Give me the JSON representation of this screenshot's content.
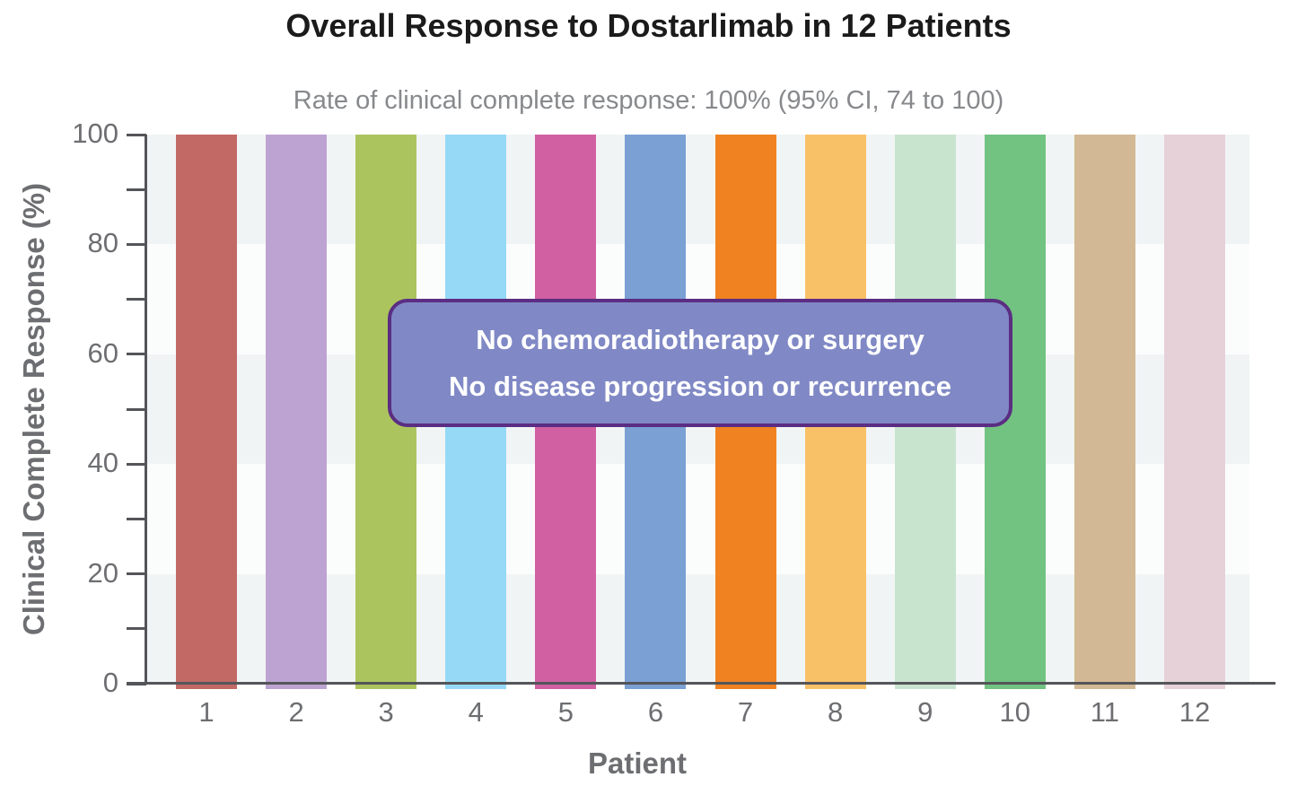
{
  "page": {
    "title": "Overall Response to Dostarlimab in 12 Patients",
    "subtitle": "Rate of clinical complete response: 100% (95% CI, 74 to 100)"
  },
  "annotation": {
    "line1": "No chemoradiotherapy or surgery",
    "line2": "No disease progression or recurrence",
    "fill_color": "#8089c5",
    "border_color": "#5b2d83",
    "text_color": "#ffffff"
  },
  "chart_data": {
    "type": "bar",
    "title": "Overall Response to Dostarlimab in 12 Patients",
    "subtitle": "Rate of clinical complete response: 100% (95% CI, 74 to 100)",
    "xlabel": "Patient",
    "ylabel": "Clinical Complete Response (%)",
    "categories": [
      "1",
      "2",
      "3",
      "4",
      "5",
      "6",
      "7",
      "8",
      "9",
      "10",
      "11",
      "12"
    ],
    "values": [
      100,
      100,
      100,
      100,
      100,
      100,
      100,
      100,
      100,
      100,
      100,
      100
    ],
    "ylim": [
      0,
      100
    ],
    "ytick_labeled": [
      0,
      20,
      40,
      60,
      80,
      100
    ],
    "ytick_minor": [
      10,
      30,
      50,
      70,
      90
    ],
    "legend_position": "none",
    "grid": "alternating horizontal shaded bands every 20%",
    "bar_colors": [
      "#c26966",
      "#bda3d2",
      "#abc45e",
      "#96d9f7",
      "#d160a2",
      "#7aa0d4",
      "#f08221",
      "#f9c167",
      "#c8e4cf",
      "#72c282",
      "#d2b894",
      "#e6d1d8"
    ],
    "band_colors": [
      "#f1f4f5",
      "#fbfdfd"
    ],
    "axis_color": "#545559",
    "tick_label_color": "#6d6e71",
    "title_color": "#1b1b1b",
    "subtitle_color": "#87898c"
  }
}
